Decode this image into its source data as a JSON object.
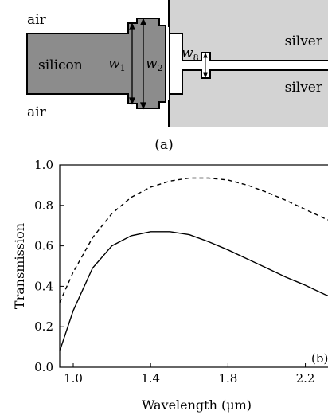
{
  "diagram": {
    "caption": "(a)",
    "labels": {
      "air_top": "air",
      "air_bottom": "air",
      "silicon": "silicon",
      "silver_top": "silver",
      "silver_bottom": "silver"
    },
    "dimension_labels": {
      "w1": {
        "base": "w",
        "sub": "1"
      },
      "w2": {
        "base": "w",
        "sub": "2"
      },
      "w8": {
        "base": "w",
        "sub": "8"
      }
    },
    "colors": {
      "silicon": "#8c8c8c",
      "silver": "#d3d3d3",
      "air": "#ffffff"
    }
  },
  "chart_data": {
    "type": "line",
    "panel_label": "(b)",
    "xlabel": "Wavelength (μm)",
    "ylabel": "Transmission",
    "xlim": [
      0.93,
      2.35
    ],
    "ylim": [
      0.0,
      1.0
    ],
    "xticks": [
      1.0,
      1.4,
      1.8,
      2.2
    ],
    "xtick_labels": [
      "1.0",
      "1.4",
      "1.8",
      "2.2"
    ],
    "yticks": [
      0.0,
      0.2,
      0.4,
      0.6,
      0.8,
      1.0
    ],
    "ytick_labels": [
      "0.0",
      "0.2",
      "0.4",
      "0.6",
      "0.8",
      "1.0"
    ],
    "grid": false,
    "series": [
      {
        "style": "dashed",
        "x": [
          0.93,
          1.0,
          1.1,
          1.2,
          1.3,
          1.4,
          1.5,
          1.6,
          1.7,
          1.8,
          1.9,
          2.0,
          2.1,
          2.2,
          2.3,
          2.35
        ],
        "y": [
          0.32,
          0.47,
          0.64,
          0.76,
          0.84,
          0.89,
          0.92,
          0.935,
          0.935,
          0.925,
          0.9,
          0.865,
          0.825,
          0.78,
          0.735,
          0.715
        ]
      },
      {
        "style": "solid",
        "x": [
          0.93,
          1.0,
          1.1,
          1.2,
          1.3,
          1.4,
          1.5,
          1.6,
          1.7,
          1.8,
          1.9,
          2.0,
          2.1,
          2.2,
          2.3,
          2.35
        ],
        "y": [
          0.08,
          0.28,
          0.49,
          0.6,
          0.65,
          0.67,
          0.67,
          0.655,
          0.62,
          0.58,
          0.535,
          0.49,
          0.445,
          0.405,
          0.36,
          0.34
        ]
      }
    ]
  }
}
